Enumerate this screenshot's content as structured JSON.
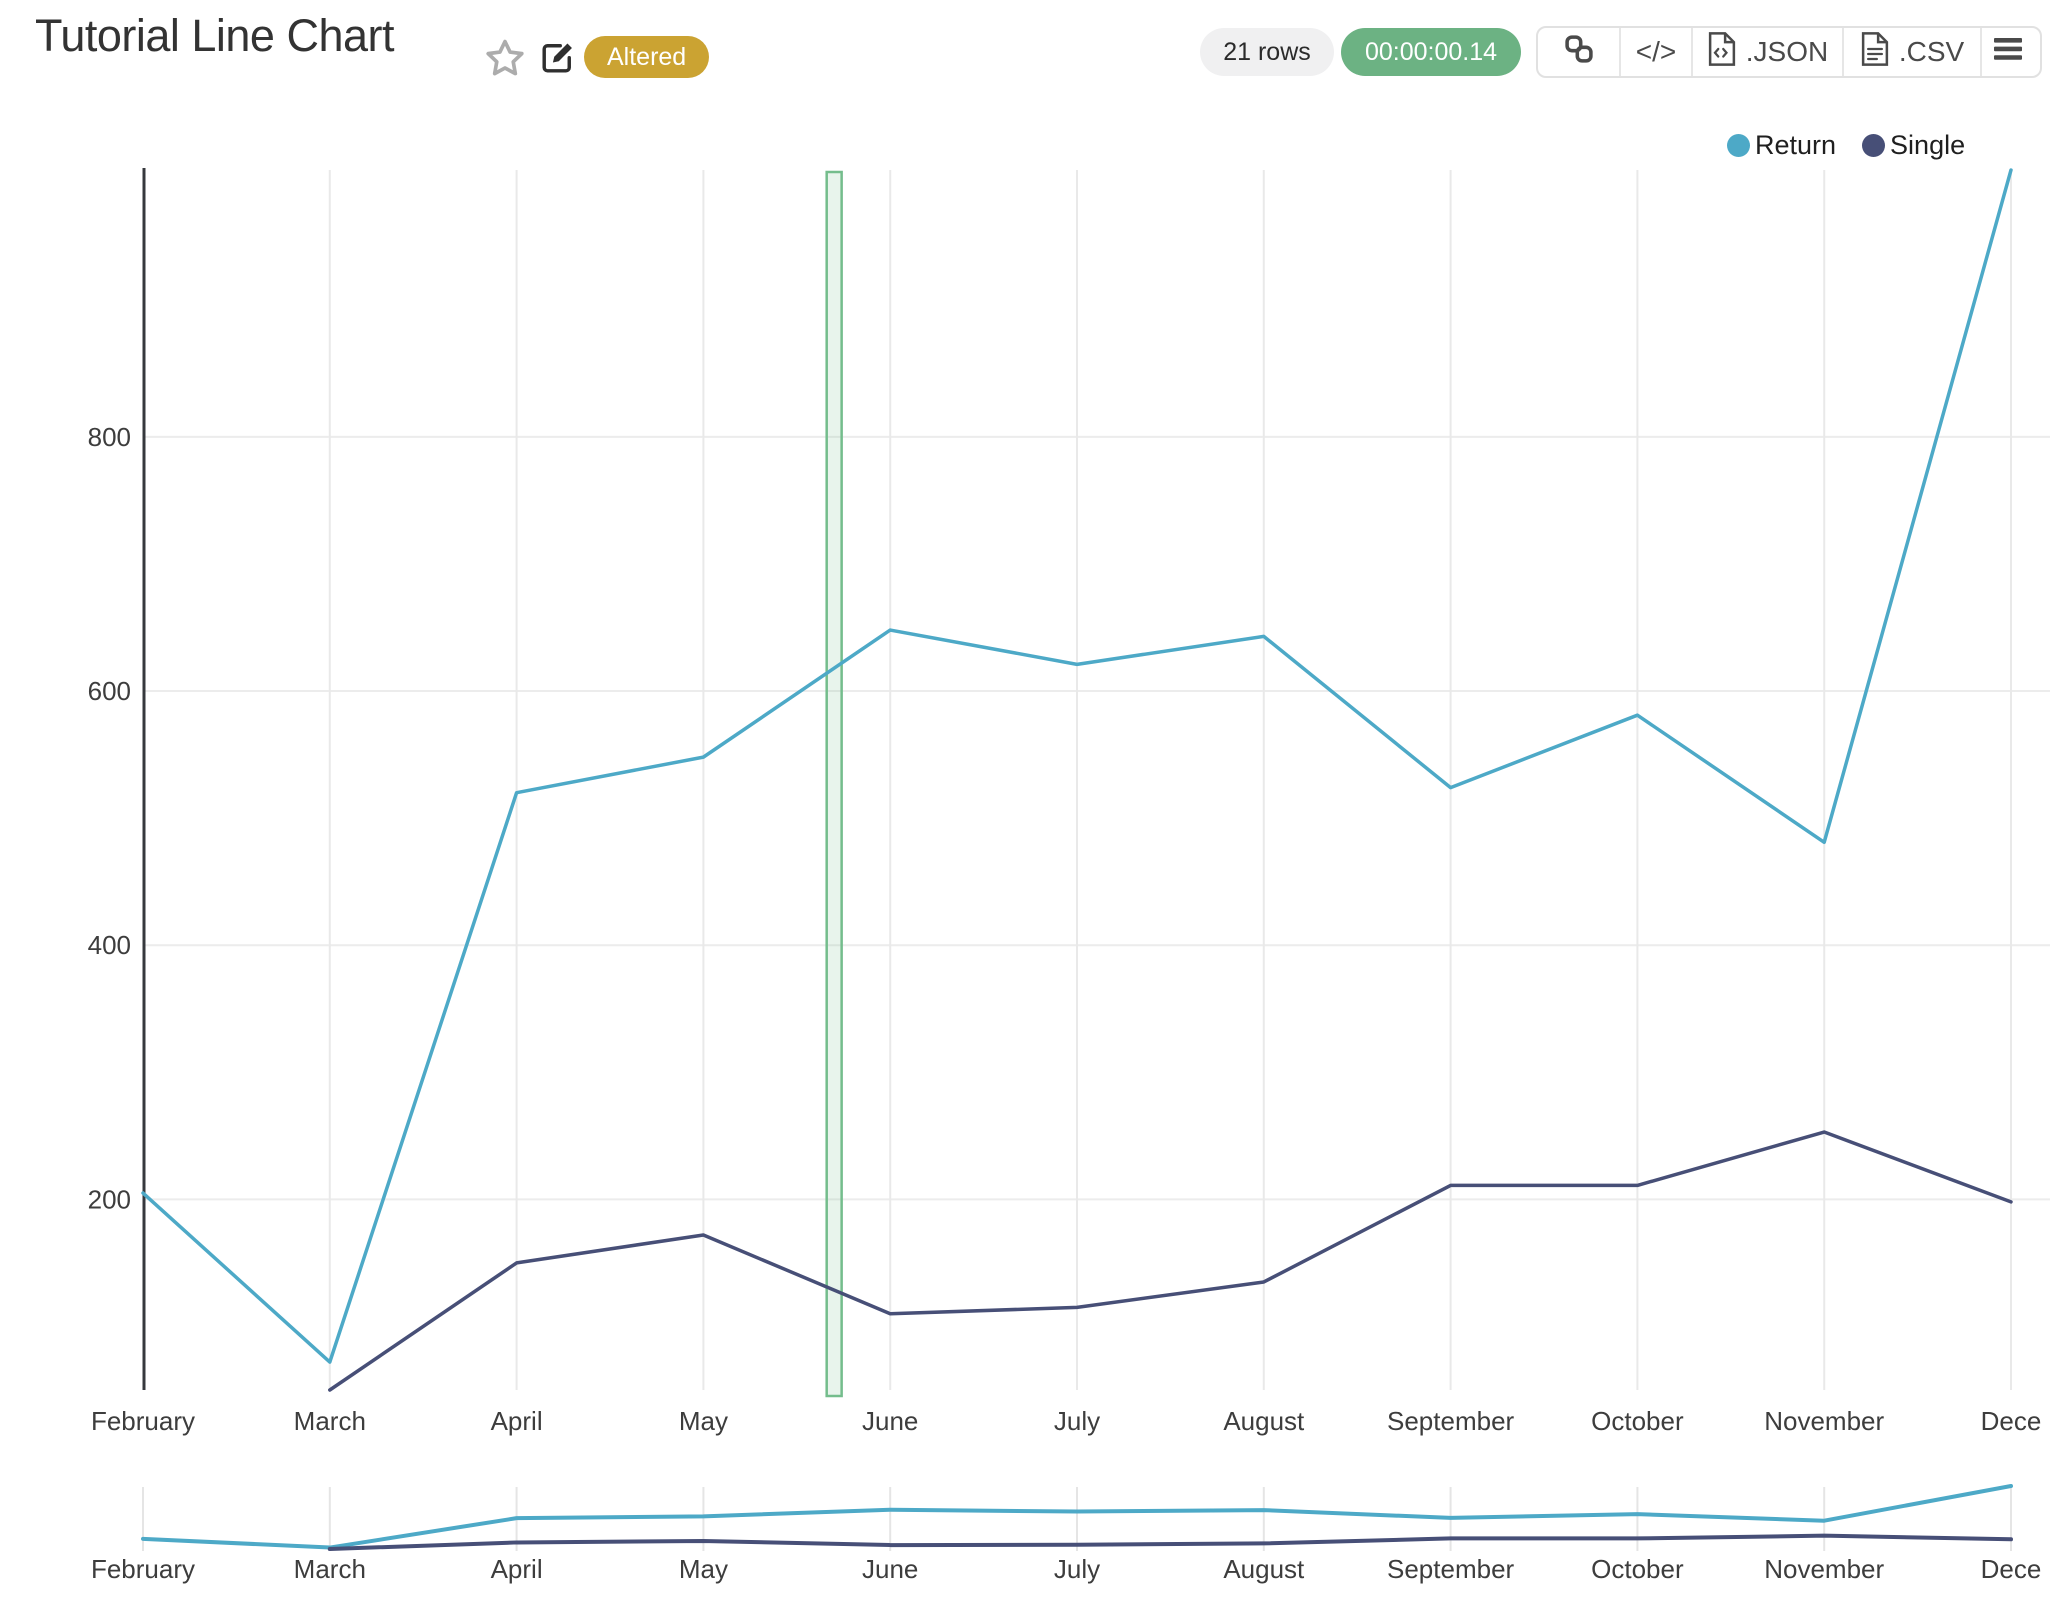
{
  "header": {
    "title": "Tutorial Line Chart",
    "altered_badge": "Altered",
    "rows_count": "21 rows",
    "query_time": "00:00:00.14",
    "embed_code_label": "</>",
    "export_json_label": ".JSON",
    "export_csv_label": ".CSV"
  },
  "legend": {
    "items": [
      {
        "label": "Return",
        "color": "#4DA9C7"
      },
      {
        "label": "Single",
        "color": "#474F77"
      }
    ]
  },
  "chart_data": {
    "type": "line",
    "title": "Tutorial Line Chart",
    "categories": [
      "February",
      "March",
      "April",
      "May",
      "June",
      "July",
      "August",
      "September",
      "October",
      "November",
      "December"
    ],
    "x_last_label_display": "Dece",
    "series": [
      {
        "name": "Return",
        "color": "#4DA9C7",
        "values": [
          205,
          72,
          520,
          548,
          648,
          621,
          643,
          524,
          581,
          481,
          1010
        ]
      },
      {
        "name": "Single",
        "color": "#474F77",
        "values": [
          null,
          50,
          150,
          172,
          110,
          115,
          135,
          211,
          211,
          253,
          198
        ]
      }
    ],
    "ylim": [
      50,
      1010
    ],
    "yticks": [
      200,
      400,
      600,
      800
    ],
    "grid": true,
    "legend_position": "top-right",
    "annotation_band": {
      "start_index": 3.66,
      "end_index": 3.74,
      "fill": "#71BA89",
      "border": "#74BD8C"
    },
    "navigator": {
      "enabled": true,
      "shows_same_series": true
    }
  },
  "ui_colors": {
    "accent_teal": "#4DA9C7",
    "accent_navy": "#474F77",
    "badge_gold": "#CBA332",
    "timer_green": "#6CB283",
    "gridline": "#EAEAEA",
    "axis_line": "#36383D"
  }
}
